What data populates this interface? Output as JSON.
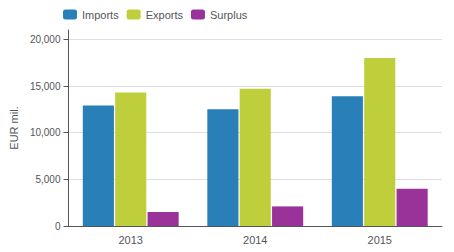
{
  "chart_data": {
    "type": "bar",
    "categories": [
      "2013",
      "2014",
      "2015"
    ],
    "series": [
      {
        "name": "Imports",
        "color": "#2980B9",
        "values": [
          12900,
          12500,
          13900
        ]
      },
      {
        "name": "Exports",
        "color": "#BFCE3B",
        "values": [
          14300,
          14700,
          18000
        ]
      },
      {
        "name": "Surplus",
        "color": "#993399",
        "values": [
          1500,
          2100,
          4000
        ]
      }
    ],
    "ylabel": "EUR mil.",
    "ylim": [
      0,
      21000
    ],
    "yticks": [
      0,
      {
        "value": 5000,
        "label": "5,000"
      },
      {
        "value": 10000,
        "label": "10,000"
      },
      {
        "value": 15000,
        "label": "15,000"
      },
      {
        "value": 20000,
        "label": "20,000"
      }
    ],
    "grid": true,
    "legend": "upper left"
  }
}
